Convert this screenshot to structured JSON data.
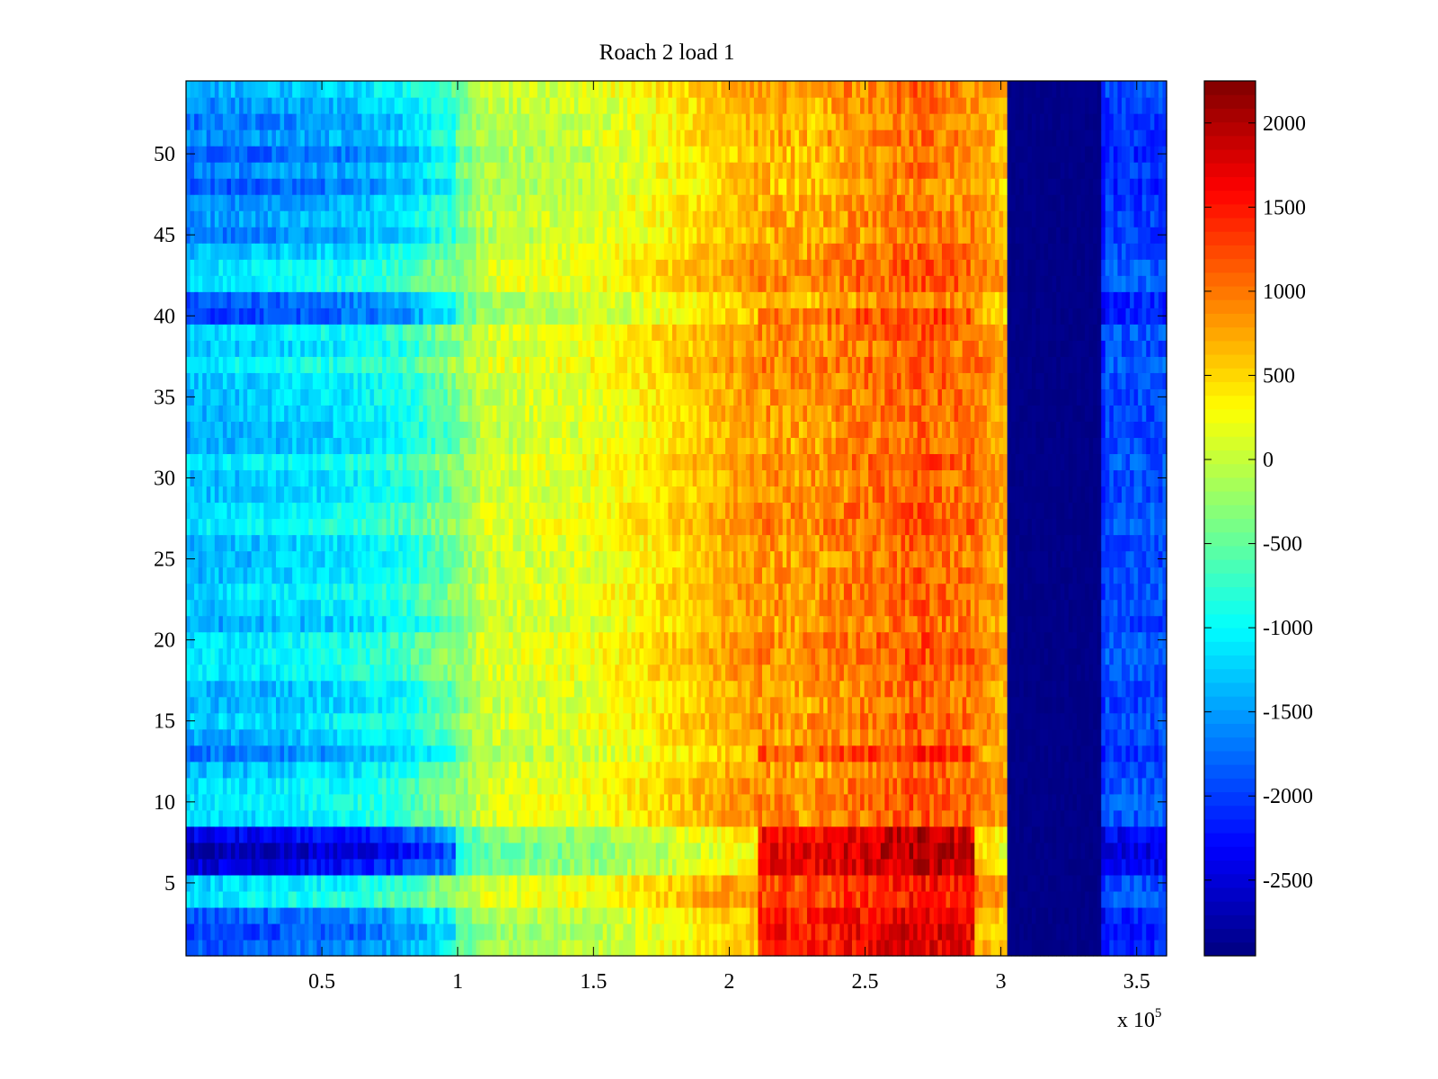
{
  "chart_data": {
    "type": "heatmap",
    "title": "Roach 2 load 1",
    "xlabel": "",
    "ylabel": "",
    "x_range": [
      0,
      361000
    ],
    "y_range": [
      0.5,
      54.5
    ],
    "rows": 54,
    "x_scale_label": "x 10",
    "x_scale_exponent": "5",
    "x_ticks": [
      {
        "value": 50000,
        "label": "0.5"
      },
      {
        "value": 100000,
        "label": "1"
      },
      {
        "value": 150000,
        "label": "1.5"
      },
      {
        "value": 200000,
        "label": "2"
      },
      {
        "value": 250000,
        "label": "2.5"
      },
      {
        "value": 300000,
        "label": "3"
      },
      {
        "value": 350000,
        "label": "3.5"
      }
    ],
    "y_ticks": [
      {
        "value": 5,
        "label": "5"
      },
      {
        "value": 10,
        "label": "10"
      },
      {
        "value": 15,
        "label": "15"
      },
      {
        "value": 20,
        "label": "20"
      },
      {
        "value": 25,
        "label": "25"
      },
      {
        "value": 30,
        "label": "30"
      },
      {
        "value": 35,
        "label": "35"
      },
      {
        "value": 40,
        "label": "40"
      },
      {
        "value": 45,
        "label": "45"
      },
      {
        "value": 50,
        "label": "50"
      }
    ],
    "colorbar": {
      "colormap": "jet",
      "range": [
        -2950,
        2250
      ],
      "ticks": [
        {
          "value": 2000,
          "label": "2000"
        },
        {
          "value": 1500,
          "label": "1500"
        },
        {
          "value": 1000,
          "label": "1000"
        },
        {
          "value": 500,
          "label": "500"
        },
        {
          "value": 0,
          "label": "0"
        },
        {
          "value": -500,
          "label": "-500"
        },
        {
          "value": -1000,
          "label": "-1000"
        },
        {
          "value": -1500,
          "label": "-1500"
        },
        {
          "value": -2000,
          "label": "-2000"
        },
        {
          "value": -2500,
          "label": "-2500"
        }
      ]
    },
    "column_profile": [
      {
        "x": 0,
        "value": -1300
      },
      {
        "x": 20000,
        "value": -1250
      },
      {
        "x": 60000,
        "value": -1050
      },
      {
        "x": 80000,
        "value": -850
      },
      {
        "x": 100000,
        "value": -350
      },
      {
        "x": 110000,
        "value": 50
      },
      {
        "x": 150000,
        "value": 200
      },
      {
        "x": 180000,
        "value": 500
      },
      {
        "x": 210000,
        "value": 850
      },
      {
        "x": 230000,
        "value": 800
      },
      {
        "x": 240000,
        "value": 900
      },
      {
        "x": 270000,
        "value": 1150
      },
      {
        "x": 290000,
        "value": 1000
      },
      {
        "x": 302000,
        "value": 700
      },
      {
        "x": 304000,
        "value": -2950
      },
      {
        "x": 336000,
        "value": -2950
      },
      {
        "x": 338000,
        "value": -1900
      },
      {
        "x": 361000,
        "value": -1900
      }
    ]
  }
}
